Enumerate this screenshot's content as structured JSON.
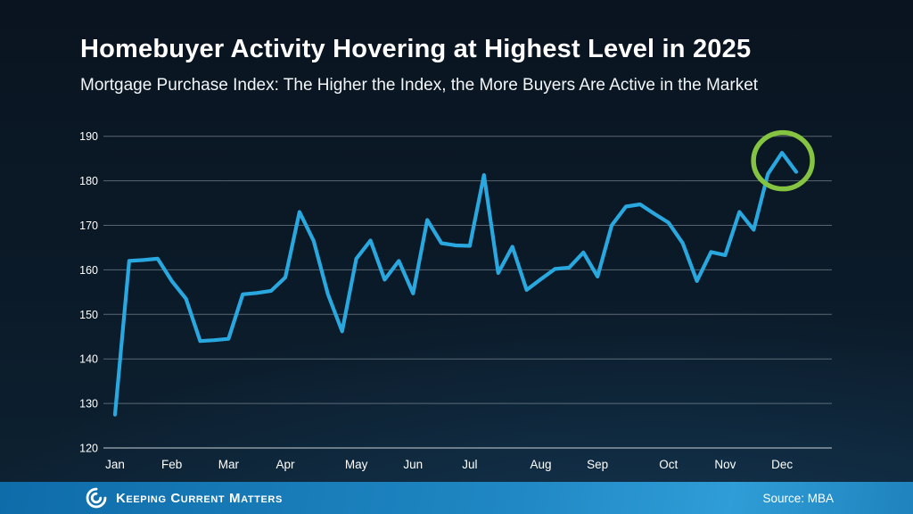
{
  "slide": {
    "title": "Homebuyer Activity Hovering at Highest Level in 2025",
    "subtitle": "Mortgage Purchase Index: The Higher the Index, the More Buyers Are Active in the Market"
  },
  "footer": {
    "brand": "Keeping Current Matters",
    "source": "Source: MBA",
    "logo_icon": "kcm-swirl-icon"
  },
  "colors": {
    "line": "#29a8e0",
    "highlight_circle": "#84c441",
    "grid": "rgba(168,180,188,0.5)",
    "axis_baseline": "rgba(200,210,216,0.8)",
    "axis_text": "#ffffff",
    "footer_left": "#0e6ca9",
    "footer_right": "#2f9dd7"
  },
  "chart_data": {
    "type": "line",
    "title": "Mortgage Purchase Index, weekly 2025",
    "ylabel": "",
    "xlabel": "",
    "ylim": [
      120,
      190
    ],
    "yticks": [
      190,
      180,
      170,
      160,
      150,
      140,
      130,
      120
    ],
    "grid": "horizontal",
    "legend": "none",
    "months": [
      {
        "label": "Jan",
        "week": 0
      },
      {
        "label": "Feb",
        "week": 4
      },
      {
        "label": "Mar",
        "week": 8
      },
      {
        "label": "Apr",
        "week": 12
      },
      {
        "label": "May",
        "week": 17
      },
      {
        "label": "Jun",
        "week": 21
      },
      {
        "label": "Jul",
        "week": 25
      },
      {
        "label": "Aug",
        "week": 30
      },
      {
        "label": "Sep",
        "week": 34
      },
      {
        "label": "Oct",
        "week": 39
      },
      {
        "label": "Nov",
        "week": 43
      },
      {
        "label": "Dec",
        "week": 47
      }
    ],
    "values": [
      127.5,
      162,
      162.2,
      162.5,
      157.5,
      153.5,
      144,
      144.2,
      144.5,
      154.5,
      154.8,
      155.3,
      158.3,
      173,
      166.5,
      154.5,
      146.2,
      162.5,
      166.6,
      157.8,
      162,
      154.7,
      171.2,
      166,
      165.5,
      165.4,
      181.3,
      159.3,
      165.2,
      155.5,
      157.9,
      160.2,
      160.5,
      163.9,
      158.5,
      170,
      174.2,
      174.7,
      172.6,
      170.6,
      166,
      157.5,
      164,
      163.3,
      173,
      169,
      181.5,
      186.3,
      182
    ],
    "highlight": {
      "week": 47,
      "value": 186.3,
      "shape": "circle",
      "color": "#84c441"
    }
  }
}
